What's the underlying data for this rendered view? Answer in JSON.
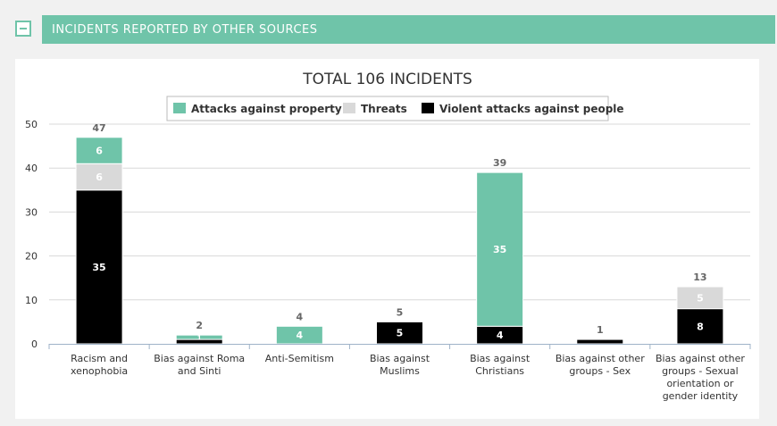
{
  "header": {
    "title": "INCIDENTS REPORTED BY OTHER SOURCES",
    "toggle_icon": "minus-icon",
    "accent_color": "#6fc4a9"
  },
  "chart_data": {
    "type": "bar",
    "stacked": true,
    "title": "TOTAL 106 INCIDENTS",
    "xlabel": "",
    "ylabel": "",
    "ylim": [
      0,
      50
    ],
    "yticks": [
      0,
      10,
      20,
      30,
      40,
      50
    ],
    "grid": true,
    "legend_position": "top",
    "categories": [
      [
        "Racism and",
        "xenophobia"
      ],
      [
        "Bias against Roma",
        "and Sinti"
      ],
      [
        "Anti-Semitism"
      ],
      [
        "Bias against",
        "Muslims"
      ],
      [
        "Bias against",
        "Christians"
      ],
      [
        "Bias against other",
        "groups - Sex"
      ],
      [
        "Bias against other",
        "groups - Sexual",
        "orientation or",
        "gender identity"
      ]
    ],
    "series": [
      {
        "name": "Violent attacks against people",
        "color": "#000000",
        "values": [
          35,
          1,
          0,
          5,
          4,
          1,
          8
        ],
        "labels": [
          "35",
          "",
          "",
          "5",
          "4",
          "",
          "8"
        ]
      },
      {
        "name": "Threats",
        "color": "#d9d9d9",
        "values": [
          6,
          0,
          0,
          0,
          0,
          0,
          5
        ],
        "labels": [
          "6",
          "",
          "",
          "",
          "",
          "",
          "5"
        ]
      },
      {
        "name": "Attacks against property",
        "color": "#6fc4a9",
        "values": [
          6,
          1,
          4,
          0,
          35,
          0,
          0
        ],
        "labels": [
          "6",
          "1",
          "4",
          "",
          "35",
          "",
          ""
        ]
      }
    ],
    "legend_order": [
      "Attacks against property",
      "Threats",
      "Violent attacks against people"
    ],
    "totals": [
      "47",
      "2",
      "4",
      "5",
      "39",
      "1",
      "13"
    ]
  }
}
